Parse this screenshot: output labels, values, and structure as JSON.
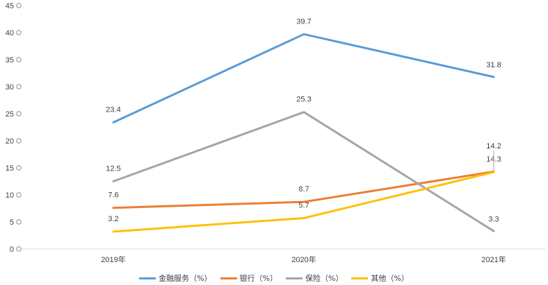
{
  "chart_data": {
    "type": "line",
    "title": "",
    "xlabel": "",
    "ylabel": "",
    "categories": [
      "2019年",
      "2020年",
      "2021年"
    ],
    "ylim": [
      0,
      45
    ],
    "yticks": [
      0,
      5,
      10,
      15,
      20,
      25,
      30,
      35,
      40,
      45
    ],
    "grid": false,
    "legend": "bottom",
    "series": [
      {
        "name": "金融服务（%）",
        "color": "#5B9BD5",
        "values": [
          23.4,
          39.7,
          31.8
        ],
        "labels": [
          "23.4",
          "39.7",
          "31.8"
        ]
      },
      {
        "name": "银行（%）",
        "color": "#ED7D31",
        "values": [
          7.6,
          8.7,
          14.3
        ],
        "labels": [
          "7.6",
          "8.7",
          "14.3"
        ]
      },
      {
        "name": "保险（%）",
        "color": "#A5A5A5",
        "values": [
          12.5,
          25.3,
          3.3
        ],
        "labels": [
          "12.5",
          "25.3",
          "3.3"
        ]
      },
      {
        "name": "其他（%）",
        "color": "#FFC000",
        "values": [
          3.2,
          5.7,
          14.2
        ],
        "labels": [
          "3.2",
          "5.7",
          "14.2"
        ]
      }
    ]
  }
}
